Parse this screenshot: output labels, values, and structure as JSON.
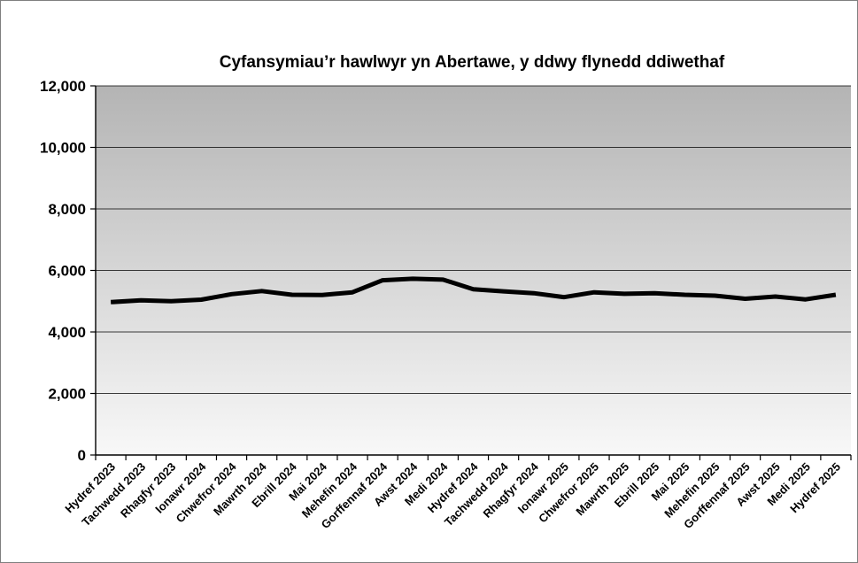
{
  "chart_data": {
    "type": "line",
    "title": "Cyfansymiau’r hawlwyr yn Abertawe, y ddwy flynedd ddiwethaf",
    "xlabel": "",
    "ylabel": "",
    "ylim": [
      0,
      12000
    ],
    "yticks": [
      0,
      2000,
      4000,
      6000,
      8000,
      10000,
      12000
    ],
    "ytick_labels": [
      "0",
      "2,000",
      "4,000",
      "6,000",
      "8,000",
      "10,000",
      "12,000"
    ],
    "grid": true,
    "legend": false,
    "categories": [
      "Hydref 2023",
      "Tachwedd 2023",
      "Rhagfyr 2023",
      "Ionawr 2024",
      "Chwefror 2024",
      "Mawrth 2024",
      "Ebrill 2024",
      "Mai 2024",
      "Mehefin 2024",
      "Gorffennaf 2024",
      "Awst 2024",
      "Medi 2024",
      "Hydref 2024",
      "Tachwedd 2024",
      "Rhagfyr 2024",
      "Ionawr 2025",
      "Chwefror 2025",
      "Mawrth 2025",
      "Ebrill 2025",
      "Mai 2025",
      "Mehefin 2025",
      "Gorffennaf 2025",
      "Awst 2025",
      "Medi 2025",
      "Hydref 2025"
    ],
    "series": [
      {
        "values": [
          4970,
          5030,
          5000,
          5050,
          5230,
          5330,
          5210,
          5200,
          5290,
          5680,
          5730,
          5700,
          5390,
          5320,
          5260,
          5130,
          5290,
          5240,
          5260,
          5210,
          5180,
          5080,
          5150,
          5060,
          5210
        ],
        "color": "#000000"
      }
    ],
    "plot_background": [
      "#b4b4b4",
      "#f8f8f8"
    ]
  }
}
